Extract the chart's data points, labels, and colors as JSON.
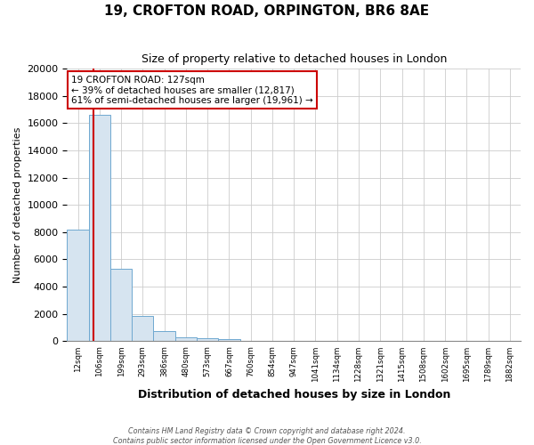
{
  "title": "19, CROFTON ROAD, ORPINGTON, BR6 8AE",
  "subtitle": "Size of property relative to detached houses in London",
  "xlabel": "Distribution of detached houses by size in London",
  "ylabel": "Number of detached properties",
  "bin_labels": [
    "12sqm",
    "106sqm",
    "199sqm",
    "293sqm",
    "386sqm",
    "480sqm",
    "573sqm",
    "667sqm",
    "760sqm",
    "854sqm",
    "947sqm",
    "1041sqm",
    "1134sqm",
    "1228sqm",
    "1321sqm",
    "1415sqm",
    "1508sqm",
    "1602sqm",
    "1695sqm",
    "1789sqm",
    "1882sqm"
  ],
  "bar_values": [
    8200,
    16600,
    5300,
    1850,
    750,
    320,
    200,
    130,
    0,
    0,
    0,
    0,
    0,
    0,
    0,
    0,
    0,
    0,
    0,
    0,
    0
  ],
  "bar_color": "#d6e4f0",
  "bar_edge_color": "#6fa8d0",
  "property_bin_index": 1,
  "property_line_label": "19 CROFTON ROAD: 127sqm",
  "annotation_line1": "← 39% of detached houses are smaller (12,817)",
  "annotation_line2": "61% of semi-detached houses are larger (19,961) →",
  "annotation_box_color": "#ffffff",
  "annotation_box_edge": "#cc0000",
  "red_line_color": "#cc0000",
  "ylim": [
    0,
    20000
  ],
  "yticks": [
    0,
    2000,
    4000,
    6000,
    8000,
    10000,
    12000,
    14000,
    16000,
    18000,
    20000
  ],
  "grid_color": "#cccccc",
  "bg_color": "#ffffff",
  "footer1": "Contains HM Land Registry data © Crown copyright and database right 2024.",
  "footer2": "Contains public sector information licensed under the Open Government Licence v3.0."
}
